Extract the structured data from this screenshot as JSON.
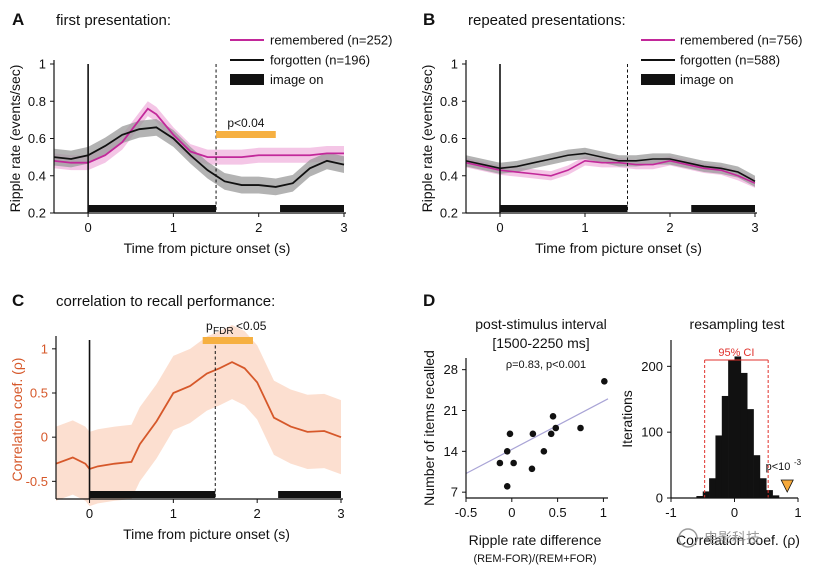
{
  "panels": {
    "A": {
      "letter": "A",
      "title": "first presentation:",
      "ylabel": "Ripple rate (events/sec)",
      "xlabel": "Time from picture onset (s)",
      "legend": [
        "remembered (n=252)",
        "forgotten (n=196)",
        "image on"
      ],
      "sig_label": "p<0.04"
    },
    "B": {
      "letter": "B",
      "title": "repeated presentations:",
      "ylabel": "Ripple rate (events/sec)",
      "xlabel": "Time from picture onset (s)",
      "legend": [
        "remembered (n=756)",
        "forgotten (n=588)",
        "image on"
      ]
    },
    "C": {
      "letter": "C",
      "title": "correlation to recall performance:",
      "ylabel": "Correlation coef. (ρ)",
      "xlabel": "Time from picture onset (s)",
      "sig_label_main": "p",
      "sig_label_sub": "FDR",
      "sig_label_rest": "<0.05"
    },
    "D": {
      "letter": "D",
      "scatter_title_1": "post-stimulus interval",
      "scatter_title_2": "[1500-2250 ms]",
      "scatter_stat": "ρ=0.83, p<0.001",
      "scatter_ylabel": "Number of items recalled",
      "scatter_xlabel_1": "Ripple rate difference",
      "scatter_xlabel_2": "(REM-FOR)/(REM+FOR)",
      "hist_title": "resampling test",
      "hist_ylabel": "Iterations",
      "hist_xlabel": "Correlation coef. (ρ)",
      "ci_label": "95% CI",
      "p_label_main": "p<10",
      "p_label_exp": "-3"
    }
  },
  "watermark": "电影科技",
  "colors": {
    "remembered": "#c2289a",
    "remembered_band": "#f0b3de",
    "forgotten": "#111111",
    "forgotten_band": "#9a9a9a",
    "sig_bar": "#f6b041",
    "corr_line": "#d6582a",
    "corr_band": "#fcdccb",
    "ci": "#e0312c",
    "marker": "#f6a93b"
  },
  "chart_data": [
    {
      "id": "A",
      "type": "line",
      "title": "first presentation:",
      "xlabel": "Time from picture onset (s)",
      "ylabel": "Ripple rate (events/sec)",
      "xlim": [
        -0.4,
        3
      ],
      "ylim": [
        0.2,
        1.0
      ],
      "xticks": [
        0,
        1,
        2,
        3
      ],
      "yticks": [
        0.2,
        0.4,
        0.6,
        0.8,
        1.0
      ],
      "ytick_labels": [
        "0.2",
        "0.4",
        "0.6",
        "0.8",
        "1"
      ],
      "image_on": [
        [
          0,
          1.5
        ],
        [
          2.25,
          3
        ]
      ],
      "dashed_line_x": 1.5,
      "sig_interval": [
        1.5,
        2.2
      ],
      "series": [
        {
          "name": "remembered (n=252)",
          "x": [
            -0.4,
            -0.2,
            0,
            0.2,
            0.4,
            0.6,
            0.7,
            0.8,
            1.0,
            1.2,
            1.4,
            1.6,
            1.8,
            2.0,
            2.2,
            2.4,
            2.6,
            2.8,
            3.0
          ],
          "values": [
            0.48,
            0.47,
            0.47,
            0.51,
            0.58,
            0.7,
            0.76,
            0.73,
            0.62,
            0.53,
            0.5,
            0.5,
            0.5,
            0.51,
            0.51,
            0.51,
            0.51,
            0.52,
            0.52
          ],
          "band": 0.04
        },
        {
          "name": "forgotten (n=196)",
          "x": [
            -0.4,
            -0.2,
            0,
            0.2,
            0.4,
            0.6,
            0.8,
            1.0,
            1.2,
            1.4,
            1.5,
            1.6,
            1.8,
            2.0,
            2.2,
            2.4,
            2.6,
            2.8,
            3.0
          ],
          "values": [
            0.5,
            0.49,
            0.51,
            0.56,
            0.62,
            0.65,
            0.66,
            0.6,
            0.51,
            0.43,
            0.4,
            0.37,
            0.35,
            0.35,
            0.34,
            0.36,
            0.44,
            0.48,
            0.46
          ],
          "band": 0.045
        }
      ]
    },
    {
      "id": "B",
      "type": "line",
      "title": "repeated presentations:",
      "xlabel": "Time from picture onset (s)",
      "ylabel": "Ripple rate (events/sec)",
      "xlim": [
        -0.4,
        3
      ],
      "ylim": [
        0.2,
        1.0
      ],
      "xticks": [
        0,
        1,
        2,
        3
      ],
      "yticks": [
        0.2,
        0.4,
        0.6,
        0.8,
        1.0
      ],
      "ytick_labels": [
        "0.2",
        "0.4",
        "0.6",
        "0.8",
        "1"
      ],
      "image_on": [
        [
          0,
          1.5
        ],
        [
          2.25,
          3
        ]
      ],
      "dashed_line_x": 1.5,
      "series": [
        {
          "name": "remembered (n=756)",
          "x": [
            -0.4,
            -0.2,
            0,
            0.2,
            0.4,
            0.6,
            0.8,
            1.0,
            1.2,
            1.4,
            1.6,
            1.8,
            2.0,
            2.2,
            2.4,
            2.6,
            2.8,
            3.0
          ],
          "values": [
            0.47,
            0.45,
            0.43,
            0.42,
            0.41,
            0.4,
            0.43,
            0.48,
            0.47,
            0.47,
            0.46,
            0.46,
            0.48,
            0.46,
            0.44,
            0.43,
            0.4,
            0.36
          ],
          "band": 0.025
        },
        {
          "name": "forgotten (n=588)",
          "x": [
            -0.4,
            -0.2,
            0,
            0.2,
            0.4,
            0.6,
            0.8,
            1.0,
            1.2,
            1.4,
            1.6,
            1.8,
            2.0,
            2.2,
            2.4,
            2.6,
            2.8,
            3.0
          ],
          "values": [
            0.48,
            0.46,
            0.44,
            0.45,
            0.47,
            0.49,
            0.51,
            0.52,
            0.5,
            0.48,
            0.48,
            0.49,
            0.49,
            0.47,
            0.45,
            0.44,
            0.42,
            0.37
          ],
          "band": 0.03
        }
      ]
    },
    {
      "id": "C",
      "type": "line",
      "title": "correlation to recall performance:",
      "xlabel": "Time from picture onset (s)",
      "ylabel": "Correlation coef. (ρ)",
      "xlim": [
        -0.4,
        3
      ],
      "ylim": [
        -0.7,
        1.1
      ],
      "xticks": [
        0,
        1,
        2,
        3
      ],
      "yticks": [
        -0.5,
        0,
        0.5,
        1
      ],
      "ytick_labels": [
        "-0.5",
        "0",
        "0.5",
        "1"
      ],
      "image_on": [
        [
          0,
          1.5
        ],
        [
          2.25,
          3
        ]
      ],
      "dashed_line_x": 1.5,
      "sig_interval": [
        1.35,
        1.95
      ],
      "series": [
        {
          "name": "",
          "x": [
            -0.4,
            -0.2,
            -0.05,
            0,
            0.1,
            0.3,
            0.5,
            0.6,
            0.8,
            1.0,
            1.2,
            1.4,
            1.55,
            1.7,
            1.85,
            2.0,
            2.2,
            2.4,
            2.6,
            2.8,
            3.0
          ],
          "values": [
            -0.3,
            -0.23,
            -0.3,
            -0.36,
            -0.33,
            -0.3,
            -0.28,
            -0.08,
            0.18,
            0.5,
            0.58,
            0.72,
            0.78,
            0.85,
            0.78,
            0.62,
            0.22,
            0.12,
            0.06,
            0.07,
            0.0
          ],
          "band": 0.42
        }
      ]
    },
    {
      "id": "D-scatter",
      "type": "scatter",
      "title": "post-stimulus interval [1500-2250 ms]",
      "annotation": "ρ=0.83, p<0.001",
      "xlabel": "Ripple rate difference (REM-FOR)/(REM+FOR)",
      "ylabel": "Number of items recalled",
      "xlim": [
        -0.5,
        1.05
      ],
      "ylim": [
        6,
        30
      ],
      "xticks": [
        -0.5,
        0,
        0.5,
        1
      ],
      "yticks": [
        7,
        14,
        21,
        28
      ],
      "points": [
        {
          "x": -0.13,
          "y": 12
        },
        {
          "x": -0.05,
          "y": 14
        },
        {
          "x": -0.02,
          "y": 17
        },
        {
          "x": 0.02,
          "y": 12
        },
        {
          "x": -0.05,
          "y": 8
        },
        {
          "x": 0.22,
          "y": 11
        },
        {
          "x": 0.23,
          "y": 17
        },
        {
          "x": 0.35,
          "y": 14
        },
        {
          "x": 0.43,
          "y": 17
        },
        {
          "x": 0.45,
          "y": 20
        },
        {
          "x": 0.48,
          "y": 18
        },
        {
          "x": 0.75,
          "y": 18
        },
        {
          "x": 1.01,
          "y": 26
        }
      ],
      "fit_line": [
        [
          -0.5,
          10.2
        ],
        [
          1.05,
          23.0
        ]
      ]
    },
    {
      "id": "D-hist",
      "type": "bar",
      "title": "resampling test",
      "xlabel": "Correlation coef. (ρ)",
      "ylabel": "Iterations",
      "xlim": [
        -1,
        1
      ],
      "ylim": [
        0,
        240
      ],
      "xticks": [
        -1,
        0,
        1
      ],
      "yticks": [
        0,
        100,
        200
      ],
      "bin_width": 0.1,
      "bin_centers": [
        -0.55,
        -0.45,
        -0.35,
        -0.25,
        -0.15,
        -0.05,
        0.05,
        0.15,
        0.25,
        0.35,
        0.45,
        0.55,
        0.65
      ],
      "values": [
        3,
        10,
        30,
        95,
        155,
        210,
        215,
        190,
        135,
        65,
        30,
        12,
        4
      ],
      "ci95": [
        -0.47,
        0.53
      ],
      "observed": 0.83
    }
  ]
}
